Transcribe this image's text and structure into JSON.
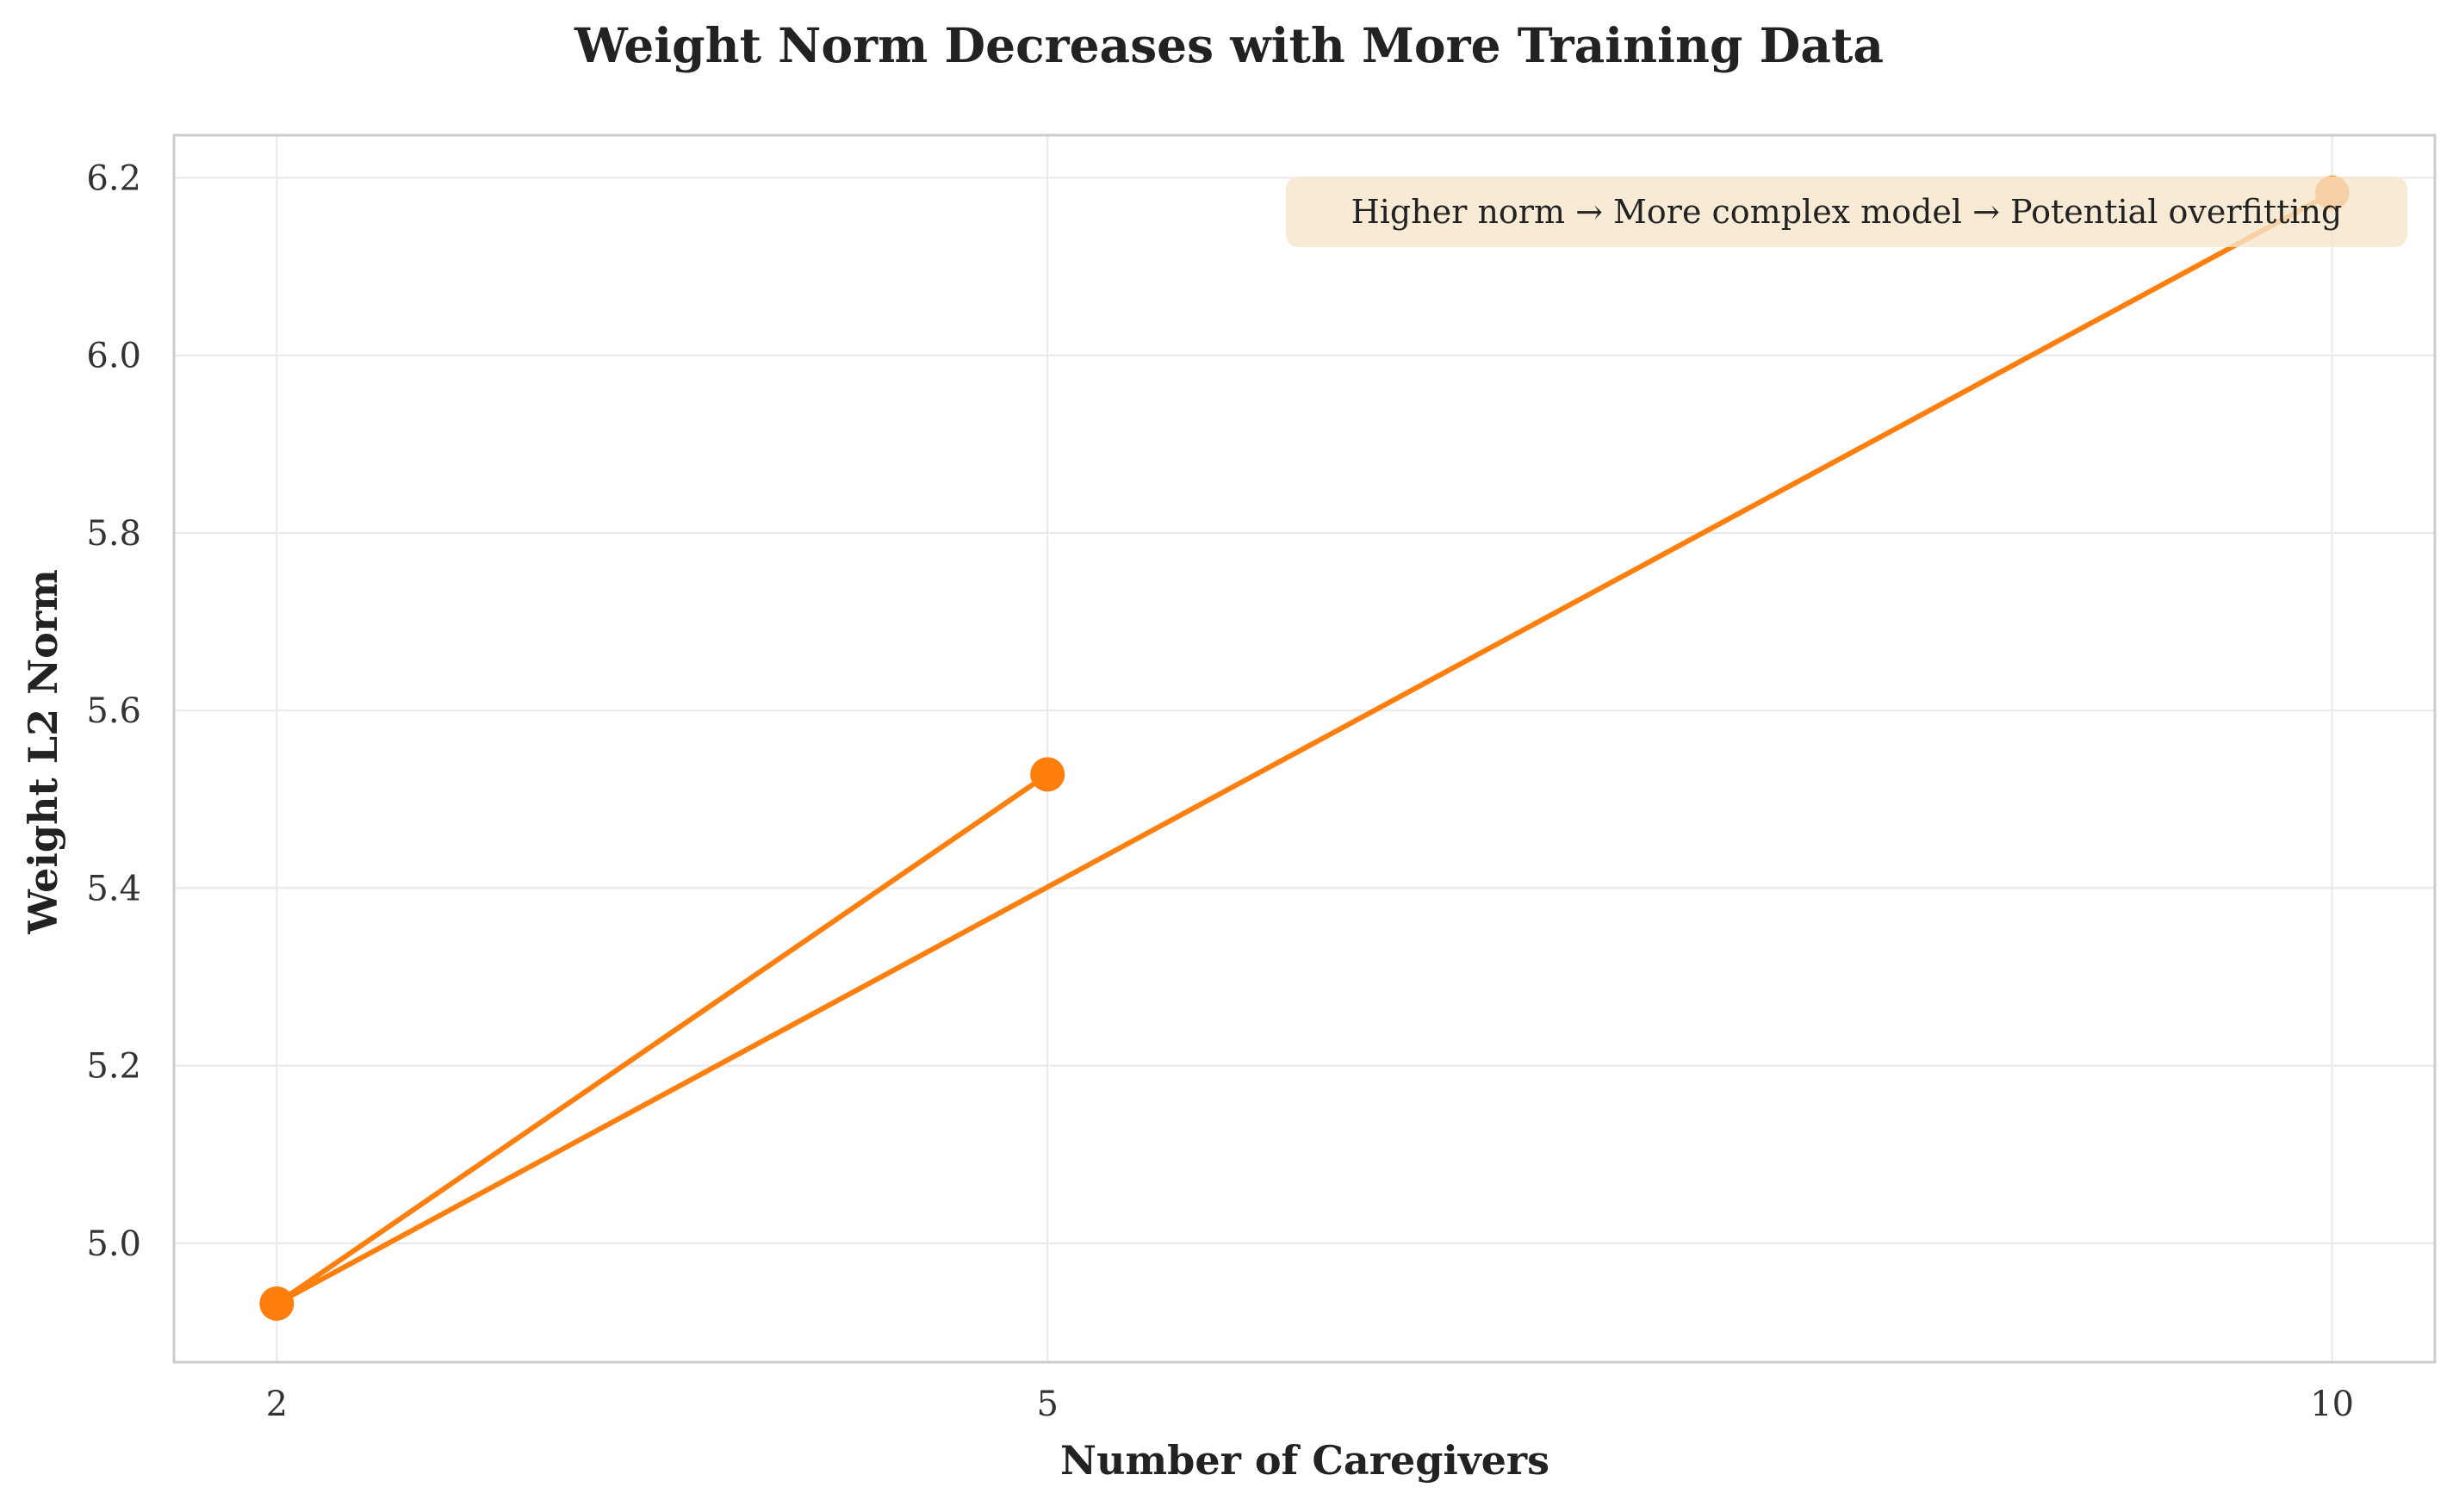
{
  "chart_data": {
    "type": "line",
    "title": "Weight Norm Decreases with More Training Data",
    "xlabel": "Number of Caregivers",
    "ylabel": "Weight L2 Norm",
    "x_ticks": [
      2,
      5,
      10
    ],
    "x_tick_labels": [
      "2",
      "5",
      "10"
    ],
    "y_ticks": [
      5.0,
      5.2,
      5.4,
      5.6,
      5.8,
      6.0,
      6.2
    ],
    "y_tick_labels": [
      "5.0",
      "5.2",
      "5.4",
      "5.6",
      "5.8",
      "6.0",
      "6.2"
    ],
    "xlim": [
      1.6,
      10.4
    ],
    "ylim": [
      4.866,
      6.248
    ],
    "grid": true,
    "line_color": "#ff7f0e",
    "series": [
      {
        "x": [
          5,
          2,
          10
        ],
        "y": [
          5.528,
          4.932,
          6.183
        ]
      }
    ],
    "annotation": {
      "text": "Higher norm → More complex model → Potential overfitting",
      "position": "top-right",
      "background": "#f5e6cc"
    }
  }
}
